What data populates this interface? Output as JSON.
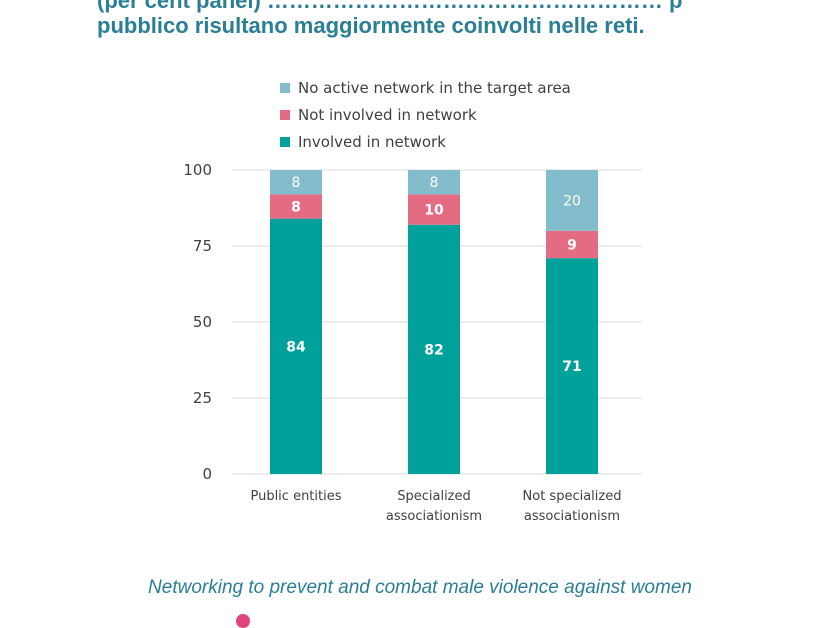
{
  "header": {
    "title_top": "(per cent panel) ……………………………………………… p",
    "title_main": "pubblico risultano maggiormente coinvolti nelle reti."
  },
  "colors": {
    "involved": "#00a19a",
    "not_involved": "#e46c82",
    "no_network": "#83bccb",
    "grid": "#d9d9d9",
    "axis_text": "#404040",
    "title": "#2a7f96"
  },
  "chart_data": {
    "type": "bar",
    "stacked": true,
    "categories": [
      "Public entities",
      "Specialized associationism",
      "Not specialized associationism"
    ],
    "category_lines": [
      [
        "Public entities"
      ],
      [
        "Specialized",
        "associationism"
      ],
      [
        "Not specialized",
        "associationism"
      ]
    ],
    "series": [
      {
        "name": "Involved in network",
        "values": [
          84,
          82,
          71
        ],
        "color": "#00a19a",
        "label_color": "#ffffff"
      },
      {
        "name": "Not involved in network",
        "values": [
          8,
          10,
          9
        ],
        "color": "#e46c82",
        "label_color": "#ffffff"
      },
      {
        "name": "No active network in the target area",
        "values": [
          8,
          8,
          20
        ],
        "color": "#83bccb",
        "label_color": "#ffffff"
      }
    ],
    "legend_order": [
      "No active network in the target area",
      "Not involved in network",
      "Involved in network"
    ],
    "ylim": [
      0,
      100
    ],
    "yticks": [
      0,
      25,
      50,
      75,
      100
    ],
    "grid": true,
    "legend_position": "top",
    "title": "",
    "xlabel": "",
    "ylabel": ""
  },
  "footer": {
    "caption": "Networking to prevent and combat male violence against women"
  }
}
